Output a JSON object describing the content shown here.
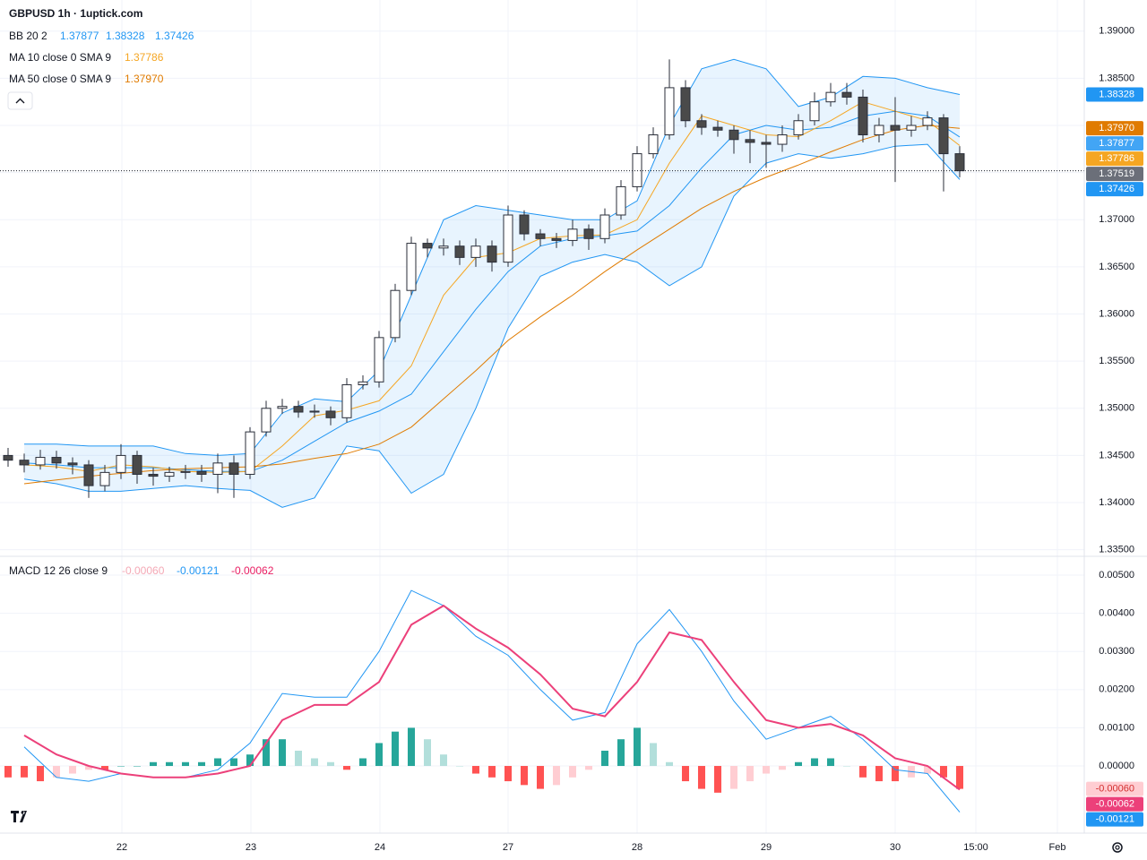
{
  "chart_data": [
    {
      "type": "candlestick",
      "title": "GBPUSD 1h · 1uptick.com",
      "xlim": [
        0,
        201.67
      ],
      "ylim": [
        1.3344,
        1.3933
      ],
      "yticks": [
        {
          "value": 1.335,
          "label": "1.33500"
        },
        {
          "value": 1.34,
          "label": "1.34000"
        },
        {
          "value": 1.345,
          "label": "1.34500"
        },
        {
          "value": 1.35,
          "label": "1.35000"
        },
        {
          "value": 1.355,
          "label": "1.35500"
        },
        {
          "value": 1.36,
          "label": "1.36000"
        },
        {
          "value": 1.365,
          "label": "1.36500"
        },
        {
          "value": 1.37,
          "label": "1.37000"
        },
        {
          "value": 1.375,
          "label": "1.37500"
        },
        {
          "value": 1.38,
          "label": "1.38000"
        },
        {
          "value": 1.385,
          "label": "1.38500"
        },
        {
          "value": 1.39,
          "label": "1.39000"
        }
      ],
      "grid": true,
      "up_color": "#ffffff",
      "down_color": "#4a4a4a",
      "border_color": "#2a2e39",
      "x": [
        1.5,
        4.5,
        7.5,
        10.5,
        13.5,
        16.5,
        19.5,
        22.5,
        25.5,
        28.5,
        31.5,
        34.5,
        37.5,
        40.5,
        43.5,
        46.5,
        49.5,
        52.5,
        55.5,
        58.5,
        61.5,
        64.5,
        67.5,
        70.5,
        73.5,
        76.5,
        79.5,
        82.5,
        85.5,
        88.5,
        91.5,
        94.5,
        97.5,
        100.5,
        103.5,
        106.5,
        109.5,
        112.5,
        115.5,
        118.5,
        121.5,
        124.5,
        127.5,
        130.5,
        133.5,
        136.5,
        139.5,
        142.5,
        145.5,
        148.5,
        151.5,
        154.5,
        157.5,
        160.5,
        163.5,
        166.5,
        169.5,
        172.5,
        175.5,
        178.5
      ],
      "open": [
        1.345,
        1.3445,
        1.344,
        1.3448,
        1.3442,
        1.344,
        1.3418,
        1.3432,
        1.345,
        1.343,
        1.3428,
        1.3432,
        1.3433,
        1.343,
        1.3442,
        1.343,
        1.3475,
        1.35,
        1.3502,
        1.3496,
        1.3497,
        1.349,
        1.3525,
        1.3528,
        1.3575,
        1.3625,
        1.3675,
        1.367,
        1.3672,
        1.366,
        1.3672,
        1.3655,
        1.3705,
        1.3685,
        1.368,
        1.3678,
        1.369,
        1.368,
        1.3705,
        1.3735,
        1.377,
        1.379,
        1.384,
        1.3805,
        1.3798,
        1.3795,
        1.3785,
        1.3782,
        1.378,
        1.379,
        1.3805,
        1.3825,
        1.3835,
        1.383,
        1.379,
        1.38,
        1.3795,
        1.38,
        1.3808,
        1.377
      ],
      "high": [
        1.3458,
        1.3452,
        1.3456,
        1.3455,
        1.3448,
        1.3445,
        1.344,
        1.3462,
        1.3455,
        1.3437,
        1.3438,
        1.344,
        1.344,
        1.3452,
        1.345,
        1.348,
        1.3508,
        1.351,
        1.3508,
        1.3504,
        1.3502,
        1.3532,
        1.3535,
        1.3582,
        1.3632,
        1.3682,
        1.368,
        1.368,
        1.3678,
        1.368,
        1.3678,
        1.3715,
        1.371,
        1.369,
        1.3686,
        1.37,
        1.3695,
        1.3712,
        1.3742,
        1.3778,
        1.3798,
        1.387,
        1.3848,
        1.3812,
        1.3805,
        1.38,
        1.3795,
        1.379,
        1.38,
        1.3812,
        1.3835,
        1.3845,
        1.3845,
        1.3838,
        1.3808,
        1.383,
        1.381,
        1.3815,
        1.3812,
        1.3778
      ],
      "low": [
        1.3438,
        1.3432,
        1.3435,
        1.3436,
        1.343,
        1.3405,
        1.3412,
        1.3425,
        1.342,
        1.3418,
        1.3422,
        1.3425,
        1.3422,
        1.341,
        1.3405,
        1.3425,
        1.347,
        1.3494,
        1.349,
        1.349,
        1.3482,
        1.3485,
        1.352,
        1.3522,
        1.357,
        1.362,
        1.366,
        1.3662,
        1.3652,
        1.365,
        1.3645,
        1.365,
        1.3678,
        1.3672,
        1.367,
        1.3672,
        1.3668,
        1.3675,
        1.37,
        1.373,
        1.3765,
        1.3785,
        1.3798,
        1.379,
        1.3788,
        1.377,
        1.376,
        1.3755,
        1.3772,
        1.3785,
        1.38,
        1.382,
        1.3822,
        1.3782,
        1.3782,
        1.374,
        1.3788,
        1.3795,
        1.373,
        1.3745
      ],
      "close": [
        1.3445,
        1.344,
        1.3448,
        1.3442,
        1.344,
        1.3418,
        1.3432,
        1.345,
        1.343,
        1.3428,
        1.3432,
        1.3433,
        1.343,
        1.3442,
        1.343,
        1.3475,
        1.35,
        1.3502,
        1.3496,
        1.3497,
        1.349,
        1.3525,
        1.3528,
        1.3575,
        1.3625,
        1.3675,
        1.367,
        1.3672,
        1.366,
        1.3672,
        1.3655,
        1.3705,
        1.3685,
        1.368,
        1.3678,
        1.369,
        1.368,
        1.3705,
        1.3735,
        1.377,
        1.379,
        1.384,
        1.3805,
        1.3798,
        1.3795,
        1.3785,
        1.3782,
        1.378,
        1.379,
        1.3805,
        1.3825,
        1.3835,
        1.383,
        1.379,
        1.38,
        1.3795,
        1.38,
        1.3808,
        1.377,
        1.37519
      ],
      "bands": {
        "name": "BB 20 2",
        "color": "#2196f3",
        "fill": "rgba(33,150,243,0.1)",
        "x": [
          4.5,
          10.5,
          16.5,
          22.5,
          28.5,
          34.5,
          40.5,
          46.5,
          52.5,
          58.5,
          64.5,
          70.5,
          76.5,
          82.5,
          88.5,
          94.5,
          100.5,
          106.5,
          112.5,
          118.5,
          124.5,
          130.5,
          136.5,
          142.5,
          148.5,
          154.5,
          160.5,
          166.5,
          172.5,
          178.5
        ],
        "basis": [
          1.3442,
          1.344,
          1.3437,
          1.3437,
          1.3437,
          1.3435,
          1.3433,
          1.3433,
          1.3445,
          1.3465,
          1.3485,
          1.3497,
          1.3515,
          1.356,
          1.3605,
          1.3645,
          1.3672,
          1.368,
          1.3683,
          1.3688,
          1.3715,
          1.3755,
          1.379,
          1.38,
          1.3795,
          1.3798,
          1.381,
          1.3815,
          1.381,
          1.37877
        ],
        "upper": [
          1.3462,
          1.3462,
          1.346,
          1.346,
          1.346,
          1.3452,
          1.345,
          1.3452,
          1.3495,
          1.351,
          1.3507,
          1.354,
          1.362,
          1.37,
          1.3715,
          1.371,
          1.3705,
          1.37,
          1.37,
          1.372,
          1.38,
          1.386,
          1.387,
          1.386,
          1.382,
          1.383,
          1.3852,
          1.385,
          1.384,
          1.38328
        ],
        "lower": [
          1.3425,
          1.342,
          1.3412,
          1.3412,
          1.3415,
          1.3418,
          1.3415,
          1.3413,
          1.3395,
          1.3405,
          1.346,
          1.3455,
          1.341,
          1.343,
          1.35,
          1.3585,
          1.364,
          1.3655,
          1.3663,
          1.3655,
          1.363,
          1.365,
          1.3725,
          1.376,
          1.377,
          1.3765,
          1.377,
          1.3778,
          1.378,
          1.37426
        ]
      },
      "series": [
        {
          "name": "MA 10 close 0 SMA 9",
          "color": "#f5a623",
          "x": [
            4.5,
            10.5,
            16.5,
            22.5,
            28.5,
            34.5,
            40.5,
            46.5,
            52.5,
            58.5,
            64.5,
            70.5,
            76.5,
            82.5,
            88.5,
            94.5,
            100.5,
            106.5,
            112.5,
            118.5,
            124.5,
            130.5,
            136.5,
            142.5,
            148.5,
            154.5,
            160.5,
            166.5,
            172.5,
            178.5
          ],
          "values": [
            1.344,
            1.3438,
            1.3433,
            1.344,
            1.3438,
            1.3433,
            1.3432,
            1.3433,
            1.346,
            1.3492,
            1.3498,
            1.3508,
            1.3545,
            1.362,
            1.366,
            1.3665,
            1.368,
            1.3683,
            1.3684,
            1.37,
            1.376,
            1.381,
            1.38,
            1.379,
            1.3788,
            1.3805,
            1.3825,
            1.3815,
            1.3805,
            1.37786
          ]
        },
        {
          "name": "MA 50 close 0 SMA 9",
          "color": "#e07b00",
          "x": [
            4.5,
            10.5,
            16.5,
            22.5,
            28.5,
            34.5,
            40.5,
            46.5,
            52.5,
            58.5,
            64.5,
            70.5,
            76.5,
            82.5,
            88.5,
            94.5,
            100.5,
            106.5,
            112.5,
            118.5,
            124.5,
            130.5,
            136.5,
            142.5,
            148.5,
            154.5,
            160.5,
            166.5,
            172.5,
            178.5
          ],
          "values": [
            1.342,
            1.3424,
            1.3428,
            1.3431,
            1.3434,
            1.3436,
            1.3437,
            1.3438,
            1.3441,
            1.3447,
            1.3452,
            1.3462,
            1.348,
            1.351,
            1.354,
            1.3572,
            1.3597,
            1.362,
            1.3645,
            1.3668,
            1.369,
            1.3712,
            1.373,
            1.3745,
            1.3758,
            1.3772,
            1.3785,
            1.3795,
            1.38,
            1.3797
          ],
          "value_labels": [
            null,
            null,
            null,
            null,
            null,
            null,
            null,
            null,
            null,
            null,
            null,
            null,
            null,
            null,
            null,
            null,
            null,
            null,
            null,
            null,
            null,
            null,
            null,
            null,
            null,
            null,
            null,
            null,
            null,
            "1.37970"
          ]
        }
      ]
    },
    {
      "type": "macd",
      "name": "MACD 12 26 close 9",
      "xlim": [
        0,
        201.67
      ],
      "ylim": [
        -0.00176,
        0.00547
      ],
      "yticks": [
        {
          "value": 0,
          "label": "0.00000"
        },
        {
          "value": 0.001,
          "label": "0.00100"
        },
        {
          "value": 0.002,
          "label": "0.00200"
        },
        {
          "value": 0.003,
          "label": "0.00300"
        },
        {
          "value": 0.004,
          "label": "0.00400"
        },
        {
          "value": 0.005,
          "label": "0.00500"
        }
      ],
      "xticks": [
        {
          "value": 22.67,
          "label": "22"
        },
        {
          "value": 46.67,
          "label": "23"
        },
        {
          "value": 70.67,
          "label": "24"
        },
        {
          "value": 94.5,
          "label": "27"
        },
        {
          "value": 118.5,
          "label": "28"
        },
        {
          "value": 142.5,
          "label": "29"
        },
        {
          "value": 166.5,
          "label": "30"
        },
        {
          "value": 181.5,
          "label": "15:00"
        },
        {
          "value": 196.67,
          "label": "Feb"
        }
      ],
      "histogram": {
        "colors": [
          "#26a69a",
          "#b2dfdb",
          "#ff5252",
          "#ffcdd2"
        ],
        "x": [
          1.5,
          4.5,
          7.5,
          10.5,
          13.5,
          16.5,
          19.5,
          22.5,
          25.5,
          28.5,
          31.5,
          34.5,
          37.5,
          40.5,
          43.5,
          46.5,
          49.5,
          52.5,
          55.5,
          58.5,
          61.5,
          64.5,
          67.5,
          70.5,
          73.5,
          76.5,
          79.5,
          82.5,
          85.5,
          88.5,
          91.5,
          94.5,
          97.5,
          100.5,
          103.5,
          106.5,
          109.5,
          112.5,
          115.5,
          118.5,
          121.5,
          124.5,
          127.5,
          130.5,
          133.5,
          136.5,
          139.5,
          142.5,
          145.5,
          148.5,
          151.5,
          154.5,
          157.5,
          160.5,
          163.5,
          166.5,
          169.5,
          172.5,
          175.5,
          178.5
        ],
        "values": [
          -0.0003,
          -0.0003,
          -0.0004,
          -0.0003,
          -0.0002,
          -0.0001,
          -0.0001,
          0.0,
          0.0,
          0.0001,
          0.0001,
          0.0001,
          0.0001,
          0.0002,
          0.0002,
          0.0003,
          0.0007,
          0.0007,
          0.0004,
          0.0002,
          0.0001,
          -0.0001,
          0.0002,
          0.0006,
          0.0009,
          0.001,
          0.0007,
          0.0003,
          0.0,
          -0.0002,
          -0.0003,
          -0.0004,
          -0.0005,
          -0.0006,
          -0.0005,
          -0.0003,
          -0.0001,
          0.0004,
          0.0007,
          0.001,
          0.0006,
          0.0001,
          -0.0004,
          -0.0006,
          -0.0007,
          -0.0006,
          -0.0004,
          -0.0002,
          -0.0001,
          0.0001,
          0.0002,
          0.0002,
          0.0,
          -0.0003,
          -0.0004,
          -0.0004,
          -0.0003,
          -0.0002,
          -0.0003,
          -0.0006
        ],
        "value_labels": [
          null,
          null,
          null,
          null,
          null,
          null,
          null,
          null,
          null,
          null,
          null,
          null,
          null,
          null,
          null,
          null,
          null,
          null,
          null,
          null,
          null,
          null,
          null,
          null,
          null,
          null,
          null,
          null,
          null,
          null,
          null,
          null,
          null,
          null,
          null,
          null,
          null,
          null,
          null,
          null,
          null,
          null,
          null,
          null,
          null,
          null,
          null,
          null,
          null,
          null,
          null,
          null,
          null,
          null,
          null,
          null,
          null,
          null,
          null,
          "-0.00060"
        ]
      },
      "series": [
        {
          "name": "MACD",
          "color": "#2196f3",
          "x": [
            4.5,
            10.5,
            16.5,
            22.5,
            28.5,
            34.5,
            40.5,
            46.5,
            52.5,
            58.5,
            64.5,
            70.5,
            76.5,
            82.5,
            88.5,
            94.5,
            100.5,
            106.5,
            112.5,
            118.5,
            124.5,
            130.5,
            136.5,
            142.5,
            148.5,
            154.5,
            160.5,
            166.5,
            172.5,
            178.5
          ],
          "values": [
            0.0005,
            -0.0003,
            -0.0004,
            -0.0002,
            -0.0003,
            -0.0003,
            -0.0001,
            0.0006,
            0.0019,
            0.0018,
            0.0018,
            0.003,
            0.0046,
            0.0042,
            0.0034,
            0.0029,
            0.002,
            0.0012,
            0.0014,
            0.0032,
            0.0041,
            0.003,
            0.0017,
            0.0007,
            0.001,
            0.0013,
            0.0007,
            -0.0001,
            -0.0002,
            -0.00121
          ]
        },
        {
          "name": "Signal",
          "color": "#ec407a",
          "x": [
            4.5,
            10.5,
            16.5,
            22.5,
            28.5,
            34.5,
            40.5,
            46.5,
            52.5,
            58.5,
            64.5,
            70.5,
            76.5,
            82.5,
            88.5,
            94.5,
            100.5,
            106.5,
            112.5,
            118.5,
            124.5,
            130.5,
            136.5,
            142.5,
            148.5,
            154.5,
            160.5,
            166.5,
            172.5,
            178.5
          ],
          "values": [
            0.0008,
            0.0003,
            0.0,
            -0.0002,
            -0.0003,
            -0.0003,
            -0.0002,
            0.0,
            0.0012,
            0.0016,
            0.0016,
            0.0022,
            0.0037,
            0.0042,
            0.0036,
            0.0031,
            0.0024,
            0.0015,
            0.0013,
            0.0022,
            0.0035,
            0.0033,
            0.0022,
            0.0012,
            0.001,
            0.0011,
            0.0008,
            0.0002,
            0.0,
            -0.00062
          ]
        }
      ]
    }
  ]
}
